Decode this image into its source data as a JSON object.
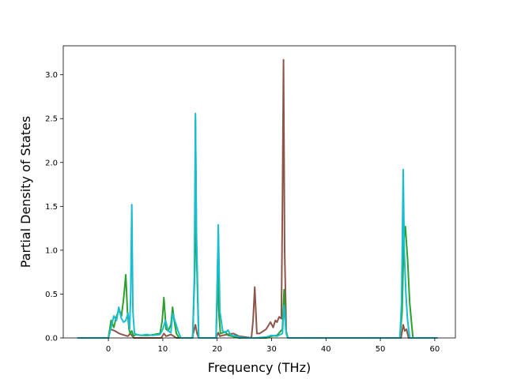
{
  "chart_data": {
    "type": "line",
    "title": "",
    "xlabel": "Frequency (THz)",
    "ylabel": "Partial Density of States",
    "xlim": [
      -8.3,
      63.8
    ],
    "ylim": [
      0,
      3.33
    ],
    "xticks": [
      0,
      10,
      20,
      30,
      40,
      50,
      60
    ],
    "xtick_labels": [
      "0",
      "10",
      "20",
      "30",
      "40",
      "50",
      "60"
    ],
    "yticks": [
      0.0,
      0.5,
      1.0,
      1.5,
      2.0,
      2.5,
      3.0
    ],
    "ytick_labels": [
      "0.0",
      "0.5",
      "1.0",
      "1.5",
      "2.0",
      "2.5",
      "3.0"
    ],
    "grid": false,
    "legend": "none",
    "series": [
      {
        "color": "#8c564b",
        "x": [
          -5.7,
          0,
          0.4,
          1.2,
          2.0,
          3.0,
          3.6,
          4.0,
          4.3,
          4.7,
          6.5,
          9.7,
          10.2,
          10.6,
          11.5,
          12.0,
          12.5,
          15.4,
          15.8,
          16.0,
          16.3,
          16.6,
          19.8,
          20.2,
          20.5,
          21.0,
          22.0,
          23.0,
          24.0,
          26.3,
          26.6,
          26.9,
          27.3,
          27.8,
          29.0,
          29.8,
          30.3,
          30.7,
          31.0,
          31.4,
          31.8,
          32.0,
          32.2,
          32.4,
          32.7,
          33.0,
          53.8,
          54.2,
          54.5,
          54.8,
          55.2,
          60.5
        ],
        "y": [
          0,
          0,
          0.1,
          0.08,
          0.05,
          0.03,
          0.02,
          0.05,
          0.03,
          0,
          0,
          0,
          0.05,
          0.02,
          0.04,
          0.02,
          0,
          0,
          0.1,
          0.15,
          0.05,
          0,
          0,
          0.06,
          0.02,
          0.03,
          0.04,
          0.05,
          0.02,
          0,
          0.2,
          0.58,
          0.05,
          0.05,
          0.1,
          0.18,
          0.12,
          0.2,
          0.18,
          0.24,
          0.22,
          1.5,
          3.17,
          1.0,
          0.05,
          0,
          0,
          0.15,
          0.08,
          0.1,
          0,
          0
        ]
      },
      {
        "color": "#2ca02c",
        "x": [
          -5.7,
          0,
          0.5,
          1.0,
          1.5,
          2.0,
          2.4,
          2.8,
          3.2,
          3.5,
          3.8,
          4.0,
          4.3,
          4.6,
          5.0,
          6.0,
          7.5,
          9.5,
          9.9,
          10.2,
          10.6,
          11.0,
          11.5,
          11.8,
          12.1,
          12.5,
          13.0,
          15.5,
          15.9,
          16.0,
          16.2,
          16.6,
          19.8,
          20.1,
          20.3,
          20.6,
          21.5,
          22.0,
          24.0,
          29.0,
          30.0,
          31.0,
          32.0,
          32.3,
          32.6,
          33.0,
          53.6,
          54.0,
          54.3,
          54.6,
          55.0,
          55.4,
          56.0,
          60.5
        ],
        "y": [
          0,
          0,
          0.2,
          0.12,
          0.25,
          0.32,
          0.25,
          0.45,
          0.72,
          0.3,
          0.1,
          0.05,
          0.08,
          0.02,
          0.04,
          0.03,
          0.03,
          0.05,
          0.2,
          0.46,
          0.1,
          0.08,
          0.15,
          0.35,
          0.2,
          0.05,
          0,
          0,
          0.8,
          2.5,
          1.0,
          0,
          0,
          0.9,
          0.3,
          0.05,
          0.07,
          0.03,
          0,
          0,
          0.02,
          0.03,
          0.1,
          0.55,
          0.1,
          0,
          0,
          0.3,
          1.1,
          1.27,
          0.9,
          0.4,
          0,
          0
        ]
      },
      {
        "color": "#17becf",
        "x": [
          -5.7,
          0,
          0.5,
          1.0,
          1.5,
          1.9,
          2.4,
          2.8,
          3.2,
          3.6,
          3.9,
          4.1,
          4.3,
          4.5,
          4.8,
          5.2,
          6.0,
          7.0,
          8.0,
          9.5,
          10.0,
          10.5,
          11.0,
          11.5,
          11.8,
          12.2,
          12.8,
          13.3,
          15.5,
          15.8,
          16.0,
          16.2,
          16.6,
          19.8,
          20.0,
          20.2,
          20.5,
          21.0,
          21.5,
          22.0,
          22.5,
          23.5,
          25.0,
          27.0,
          29.0,
          30.0,
          31.0,
          32.0,
          32.3,
          32.7,
          33.0,
          53.6,
          53.9,
          54.2,
          54.4,
          54.7,
          55.0,
          55.4,
          60.5
        ],
        "y": [
          0,
          0,
          0.12,
          0.25,
          0.2,
          0.35,
          0.22,
          0.18,
          0.2,
          0.28,
          0.1,
          0.5,
          1.52,
          0.3,
          0.05,
          0.04,
          0.03,
          0.04,
          0.03,
          0.04,
          0.1,
          0.2,
          0.08,
          0.06,
          0.28,
          0.2,
          0.08,
          0,
          0,
          0.7,
          2.56,
          1.2,
          0,
          0,
          0.5,
          1.29,
          0.3,
          0.08,
          0.06,
          0.09,
          0.03,
          0.02,
          0,
          0,
          0.01,
          0.03,
          0.02,
          0.05,
          0.37,
          0.05,
          0,
          0,
          0.4,
          1.92,
          1.0,
          0.5,
          0.2,
          0,
          0
        ]
      }
    ]
  }
}
